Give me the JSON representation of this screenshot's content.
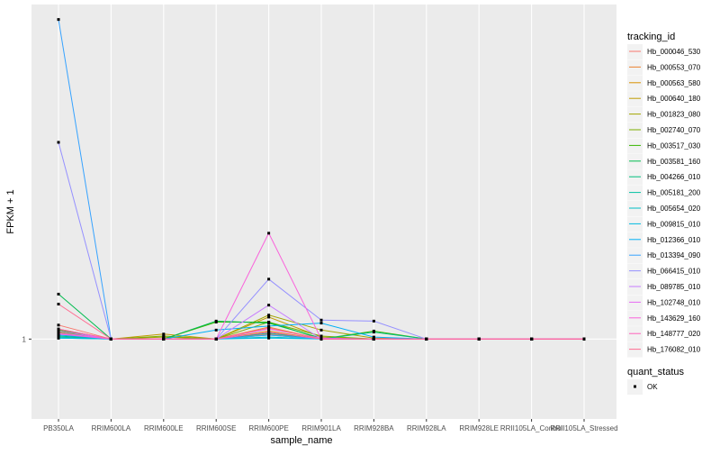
{
  "chart_data": {
    "type": "line",
    "title": "",
    "xlabel": "sample_name",
    "ylabel": "FPKM + 1",
    "categories": [
      "PB350LA",
      "RRIM600LA",
      "RRIM600LE",
      "RRIM600SE",
      "RRIM600PE",
      "RRIM901LA",
      "RRIM928BA",
      "RRIM928LA",
      "RRIM928LE",
      "RRII105LA_Control",
      "RRII105LA_Stressed"
    ],
    "y_ticks": [
      {
        "value": 1,
        "label": "1"
      }
    ],
    "ylim": [
      0.2,
      4.35
    ],
    "grid": true,
    "legend": {
      "title": "tracking_id",
      "position": "right",
      "shape_title": "quant_status",
      "shape_entries": [
        "OK"
      ]
    },
    "series": [
      {
        "name": "Hb_000046_530",
        "color": "#F8766D",
        "values": [
          1.14,
          1,
          1,
          1,
          1.05,
          1,
          1,
          1,
          1,
          1,
          1
        ]
      },
      {
        "name": "Hb_000553_070",
        "color": "#EA8331",
        "values": [
          1.1,
          1,
          1,
          1,
          1.12,
          1,
          1,
          1,
          1,
          1,
          1
        ]
      },
      {
        "name": "Hb_000563_580",
        "color": "#D89000",
        "values": [
          1.06,
          1,
          1,
          1,
          1.08,
          1,
          1,
          1,
          1,
          1,
          1
        ]
      },
      {
        "name": "Hb_000640_180",
        "color": "#C09B00",
        "values": [
          1.05,
          1,
          1.05,
          1,
          1.22,
          1.02,
          1,
          1,
          1,
          1,
          1
        ]
      },
      {
        "name": "Hb_001823_080",
        "color": "#A3A500",
        "values": [
          1.08,
          1,
          1.02,
          1,
          1.24,
          1.09,
          1.01,
          1,
          1,
          1,
          1
        ]
      },
      {
        "name": "Hb_002740_070",
        "color": "#7CAE00",
        "values": [
          1.07,
          1,
          1.03,
          1,
          1.17,
          1.03,
          1,
          1,
          1,
          1,
          1
        ]
      },
      {
        "name": "Hb_003517_030",
        "color": "#39B600",
        "values": [
          1.09,
          1,
          1,
          1.17,
          1.17,
          1,
          1.08,
          1,
          1,
          1,
          1
        ]
      },
      {
        "name": "Hb_003581_160",
        "color": "#00BB4E",
        "values": [
          1.45,
          1,
          1,
          1.18,
          1.16,
          1.01,
          1,
          1,
          1,
          1,
          1
        ]
      },
      {
        "name": "Hb_004266_010",
        "color": "#00BF7D",
        "values": [
          1.03,
          1,
          1,
          1,
          1.06,
          1,
          1.07,
          1,
          1,
          1,
          1
        ]
      },
      {
        "name": "Hb_005181_200",
        "color": "#00C1A3",
        "values": [
          1.02,
          1,
          1,
          1,
          1.04,
          1,
          1,
          1,
          1,
          1,
          1
        ]
      },
      {
        "name": "Hb_005654_020",
        "color": "#00BFC4",
        "values": [
          1.01,
          1,
          1,
          1,
          1.02,
          1,
          1,
          1,
          1,
          1,
          1
        ]
      },
      {
        "name": "Hb_009815_010",
        "color": "#00BAE0",
        "values": [
          1.01,
          1,
          1,
          1,
          1.01,
          1,
          1,
          1,
          1,
          1,
          1
        ]
      },
      {
        "name": "Hb_012366_010",
        "color": "#00B0F6",
        "values": [
          1.04,
          1,
          1,
          1.09,
          1.13,
          1.16,
          1.02,
          1,
          1,
          1,
          1
        ]
      },
      {
        "name": "Hb_013394_090",
        "color": "#35A2FF",
        "values": [
          4.2,
          1,
          1,
          1,
          1.04,
          1,
          1,
          1,
          1,
          1,
          1
        ]
      },
      {
        "name": "Hb_066415_010",
        "color": "#9590FF",
        "values": [
          2.97,
          1,
          1,
          1,
          1.6,
          1.19,
          1.18,
          1,
          1,
          1,
          1
        ]
      },
      {
        "name": "Hb_089785_010",
        "color": "#C77CFF",
        "values": [
          1.08,
          1,
          1,
          1,
          1.34,
          1,
          1,
          1,
          1,
          1,
          1
        ]
      },
      {
        "name": "Hb_102748_010",
        "color": "#E76BF3",
        "values": [
          1.06,
          1,
          1,
          1,
          1.1,
          1.01,
          1,
          1,
          1,
          1,
          1
        ]
      },
      {
        "name": "Hb_143629_160",
        "color": "#FA62DB",
        "values": [
          1.05,
          1,
          1,
          1,
          2.06,
          1,
          1,
          1,
          1,
          1,
          1
        ]
      },
      {
        "name": "Hb_148777_020",
        "color": "#FF62BC",
        "values": [
          1.1,
          1,
          1,
          1,
          1.07,
          1,
          1,
          1,
          1,
          1,
          1
        ]
      },
      {
        "name": "Hb_176082_010",
        "color": "#FF6C91",
        "values": [
          1.35,
          1,
          1,
          1,
          1.11,
          1,
          1,
          1,
          1,
          1,
          1
        ]
      }
    ]
  }
}
